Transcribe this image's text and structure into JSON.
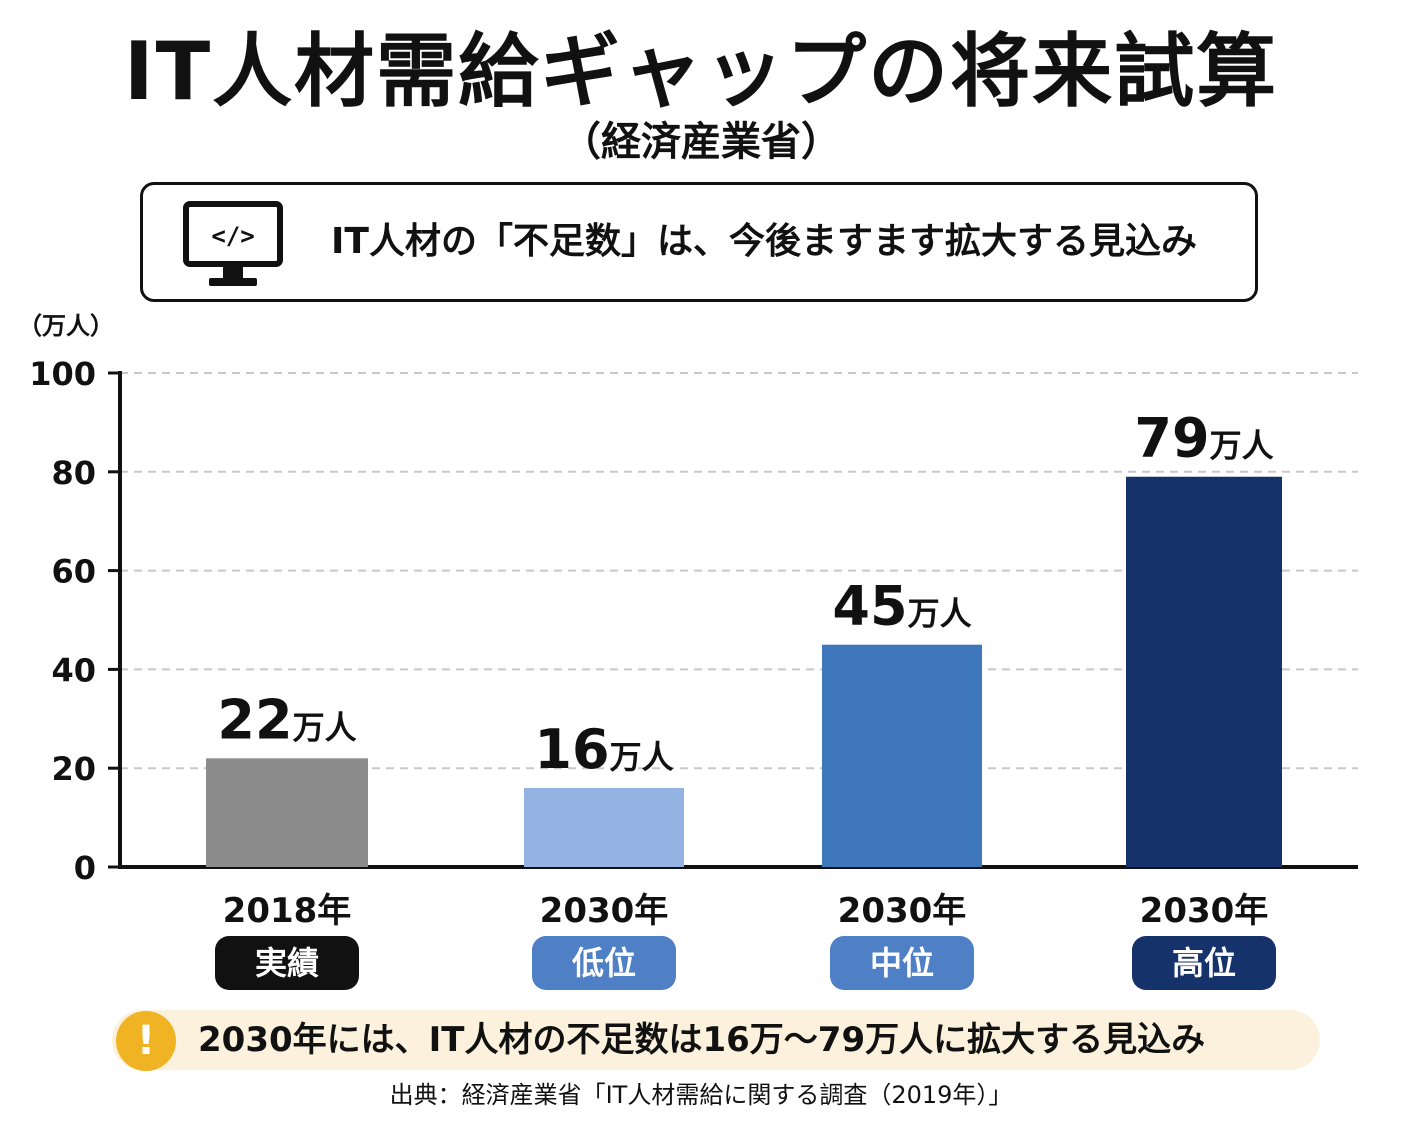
{
  "title": "IT人材需給ギャップの将来試算",
  "subtitle": "（経済産業省）",
  "callout": {
    "icon": "monitor-code-icon",
    "icon_text": "</>",
    "text": "IT人材の「不足数」は、今後ますます拡大する見込み"
  },
  "note": {
    "icon": "exclamation-icon",
    "icon_text": "!",
    "text": "2030年には、IT人材の不足数は16万〜79万人に拡大する見込み",
    "background": "#fbf1dc",
    "icon_color": "#f0b323"
  },
  "source": "出典：経済産業省「IT人材需給に関する調査（2019年）」",
  "chart_data": {
    "type": "bar",
    "ylabel": "（万人）",
    "ylim": [
      0,
      100
    ],
    "yticks": [
      "0",
      "20",
      "40",
      "60",
      "80",
      "100"
    ],
    "grid": true,
    "categories": [
      "2018年",
      "2030年",
      "2030年",
      "2030年"
    ],
    "badges": [
      "実績",
      "低位",
      "中位",
      "高位"
    ],
    "values": [
      22,
      16,
      45,
      79
    ],
    "value_labels": [
      "22",
      "16",
      "45",
      "79"
    ],
    "value_unit": "万人",
    "bar_colors": [
      "#8c8c8c",
      "#93b4e2",
      "#3f77bd",
      "#16326b"
    ],
    "badge_colors": [
      "#111111",
      "#4f7fc4",
      "#4f7fc4",
      "#16326b"
    ]
  }
}
